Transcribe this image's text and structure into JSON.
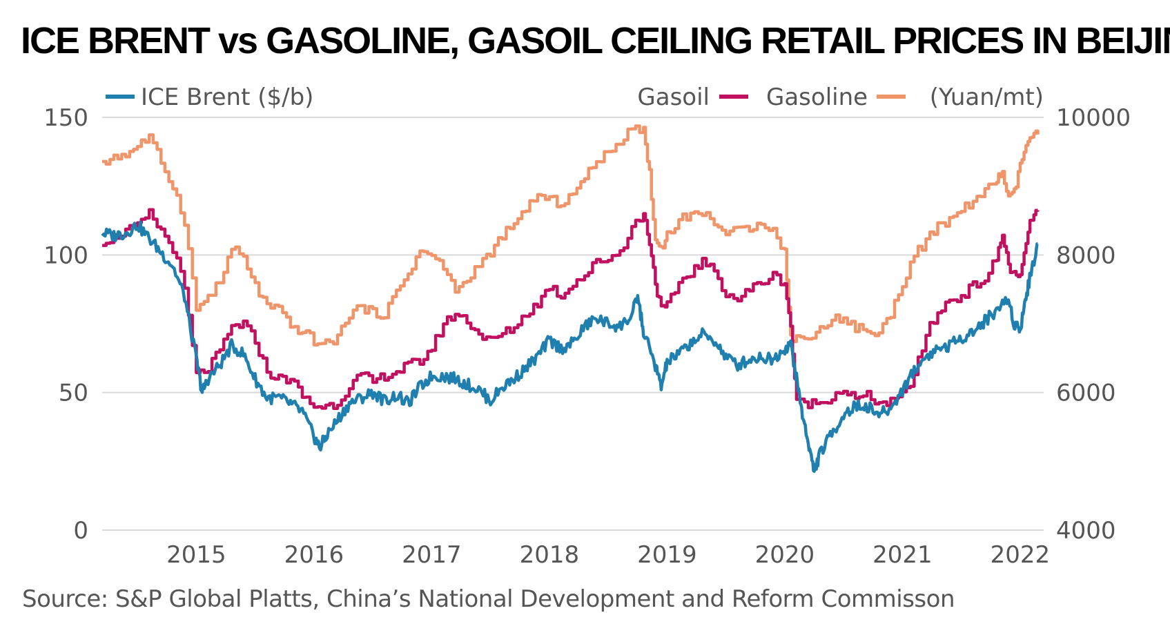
{
  "chart_data": {
    "type": "line",
    "title": "ICE BRENT vs GASOLINE, GASOIL CEILING RETAIL PRICES IN BEIJING",
    "source": "Source: S&P Global Platts, China’s National Development and Reform Commisson",
    "x_ticks": [
      "2015",
      "2016",
      "2017",
      "2018",
      "2019",
      "2020",
      "2021",
      "2022"
    ],
    "x_tick_values": [
      2015.0,
      2016.0,
      2017.0,
      2018.0,
      2019.0,
      2020.0,
      2021.0,
      2022.0
    ],
    "x_range": [
      2014.2,
      2022.2
    ],
    "y_left": {
      "label": "ICE Brent ($/b)",
      "range": [
        0,
        150
      ],
      "ticks": [
        "0",
        "50",
        "100",
        "150"
      ],
      "tick_values": [
        0,
        50,
        100,
        150
      ]
    },
    "y_right": {
      "label": "(Yuan/mt)",
      "range": [
        4000,
        10000
      ],
      "ticks": [
        "4000",
        "6000",
        "8000",
        "10000"
      ],
      "tick_values": [
        4000,
        6000,
        8000,
        10000
      ]
    },
    "grid": true,
    "legend": {
      "brent": "ICE Brent ($/b)",
      "gasoil": "Gasoil",
      "gasoline": "Gasoline",
      "unit": "(Yuan/mt)"
    },
    "colors": {
      "brent": "#1f7fae",
      "gasoline": "#c0105f",
      "gasoil": "#f0956a",
      "grid": "#d9d9d9",
      "text": "#555555"
    },
    "series": [
      {
        "name": "ICE Brent",
        "axis": "left",
        "x": [
          2014.2,
          2014.3,
          2014.4,
          2014.5,
          2014.6,
          2014.7,
          2014.8,
          2014.9,
          2015.0,
          2015.05,
          2015.1,
          2015.2,
          2015.3,
          2015.4,
          2015.5,
          2015.6,
          2015.7,
          2015.8,
          2015.9,
          2016.0,
          2016.05,
          2016.1,
          2016.2,
          2016.3,
          2016.4,
          2016.5,
          2016.6,
          2016.7,
          2016.8,
          2016.9,
          2017.0,
          2017.1,
          2017.2,
          2017.3,
          2017.4,
          2017.5,
          2017.6,
          2017.7,
          2017.8,
          2017.9,
          2018.0,
          2018.1,
          2018.2,
          2018.3,
          2018.4,
          2018.5,
          2018.6,
          2018.7,
          2018.75,
          2018.8,
          2018.9,
          2018.95,
          2019.0,
          2019.1,
          2019.2,
          2019.3,
          2019.4,
          2019.5,
          2019.6,
          2019.7,
          2019.8,
          2019.9,
          2020.0,
          2020.05,
          2020.1,
          2020.15,
          2020.2,
          2020.25,
          2020.3,
          2020.4,
          2020.5,
          2020.6,
          2020.7,
          2020.8,
          2020.9,
          2021.0,
          2021.1,
          2021.2,
          2021.3,
          2021.4,
          2021.5,
          2021.6,
          2021.7,
          2021.8,
          2021.9,
          2021.95,
          2022.0,
          2022.05,
          2022.1,
          2022.15
        ],
        "values": [
          108,
          107,
          108,
          111,
          106,
          101,
          96,
          85,
          62,
          50,
          55,
          60,
          67,
          64,
          55,
          48,
          48,
          46,
          43,
          34,
          30,
          34,
          40,
          46,
          48,
          50,
          47,
          49,
          46,
          52,
          56,
          56,
          55,
          53,
          51,
          47,
          52,
          55,
          59,
          63,
          69,
          66,
          68,
          74,
          77,
          75,
          74,
          78,
          85,
          72,
          60,
          52,
          61,
          64,
          68,
          71,
          69,
          63,
          60,
          62,
          63,
          62,
          66,
          68,
          55,
          42,
          32,
          21,
          28,
          35,
          42,
          45,
          45,
          42,
          44,
          51,
          58,
          63,
          66,
          67,
          70,
          72,
          76,
          80,
          84,
          75,
          73,
          85,
          95,
          104
        ]
      },
      {
        "name": "Gasoline",
        "axis": "right",
        "x": [
          2014.2,
          2014.3,
          2014.4,
          2014.5,
          2014.6,
          2014.7,
          2014.8,
          2014.9,
          2015.0,
          2015.1,
          2015.2,
          2015.3,
          2015.4,
          2015.5,
          2015.6,
          2015.7,
          2015.8,
          2015.9,
          2016.0,
          2016.1,
          2016.2,
          2016.3,
          2016.4,
          2016.5,
          2016.6,
          2016.7,
          2016.8,
          2016.9,
          2017.0,
          2017.1,
          2017.2,
          2017.3,
          2017.4,
          2017.5,
          2017.6,
          2017.7,
          2017.8,
          2017.9,
          2018.0,
          2018.1,
          2018.2,
          2018.3,
          2018.4,
          2018.5,
          2018.6,
          2018.7,
          2018.8,
          2018.85,
          2018.9,
          2018.95,
          2019.0,
          2019.1,
          2019.2,
          2019.3,
          2019.4,
          2019.5,
          2019.6,
          2019.7,
          2019.8,
          2019.9,
          2020.0,
          2020.05,
          2020.1,
          2020.2,
          2020.3,
          2020.4,
          2020.5,
          2020.6,
          2020.7,
          2020.8,
          2020.9,
          2021.0,
          2021.1,
          2021.2,
          2021.3,
          2021.4,
          2021.5,
          2021.6,
          2021.7,
          2021.8,
          2021.85,
          2021.9,
          2021.95,
          2022.0,
          2022.05,
          2022.1,
          2022.15
        ],
        "values": [
          8200,
          8250,
          8350,
          8400,
          8600,
          8350,
          8100,
          7500,
          6250,
          6350,
          6600,
          6950,
          7000,
          6750,
          6300,
          6200,
          6200,
          5950,
          5800,
          5800,
          5850,
          6100,
          6250,
          6150,
          6250,
          6300,
          6400,
          6450,
          6650,
          7000,
          7150,
          7050,
          6850,
          6750,
          6850,
          6950,
          7150,
          7300,
          7550,
          7400,
          7600,
          7700,
          7900,
          7950,
          8050,
          8400,
          8600,
          8200,
          7600,
          7200,
          7250,
          7600,
          7750,
          7900,
          7750,
          7450,
          7350,
          7500,
          7600,
          7700,
          7600,
          6950,
          5850,
          5850,
          5850,
          5950,
          6050,
          5900,
          5950,
          5850,
          5850,
          5950,
          6250,
          6850,
          7150,
          7350,
          7400,
          7550,
          7650,
          7950,
          8300,
          7850,
          7700,
          7650,
          8200,
          8550,
          8650
        ]
      },
      {
        "name": "Gasoil",
        "axis": "right",
        "x": [
          2014.2,
          2014.3,
          2014.4,
          2014.5,
          2014.6,
          2014.7,
          2014.8,
          2014.9,
          2015.0,
          2015.1,
          2015.2,
          2015.3,
          2015.4,
          2015.5,
          2015.6,
          2015.7,
          2015.8,
          2015.9,
          2016.0,
          2016.1,
          2016.2,
          2016.3,
          2016.4,
          2016.5,
          2016.6,
          2016.7,
          2016.8,
          2016.9,
          2017.0,
          2017.1,
          2017.2,
          2017.3,
          2017.4,
          2017.5,
          2017.6,
          2017.7,
          2017.8,
          2017.9,
          2018.0,
          2018.1,
          2018.2,
          2018.3,
          2018.4,
          2018.5,
          2018.6,
          2018.7,
          2018.8,
          2018.85,
          2018.9,
          2018.95,
          2019.0,
          2019.1,
          2019.2,
          2019.3,
          2019.4,
          2019.5,
          2019.6,
          2019.7,
          2019.8,
          2019.9,
          2020.0,
          2020.05,
          2020.1,
          2020.2,
          2020.3,
          2020.4,
          2020.5,
          2020.6,
          2020.7,
          2020.8,
          2020.9,
          2021.0,
          2021.1,
          2021.2,
          2021.3,
          2021.4,
          2021.5,
          2021.6,
          2021.7,
          2021.8,
          2021.85,
          2021.9,
          2021.95,
          2022.0,
          2022.05,
          2022.1,
          2022.15
        ],
        "values": [
          9300,
          9450,
          9450,
          9600,
          9700,
          9350,
          9000,
          8500,
          7200,
          7400,
          7600,
          8100,
          7950,
          7550,
          7250,
          7200,
          6950,
          6900,
          6750,
          6700,
          6800,
          7150,
          7250,
          7150,
          7150,
          7450,
          7750,
          8050,
          8000,
          7800,
          7500,
          7600,
          7900,
          8000,
          8300,
          8400,
          8700,
          8850,
          8800,
          8750,
          8900,
          9100,
          9400,
          9450,
          9650,
          9900,
          9800,
          9200,
          8200,
          8100,
          8300,
          8500,
          8600,
          8600,
          8500,
          8300,
          8350,
          8400,
          8500,
          8350,
          8050,
          6800,
          6800,
          6800,
          6900,
          7100,
          7050,
          6950,
          6900,
          6850,
          7150,
          7600,
          8000,
          8200,
          8400,
          8500,
          8650,
          8800,
          8900,
          9100,
          9200,
          8800,
          8900,
          9300,
          9600,
          9700,
          9750
        ]
      }
    ]
  }
}
